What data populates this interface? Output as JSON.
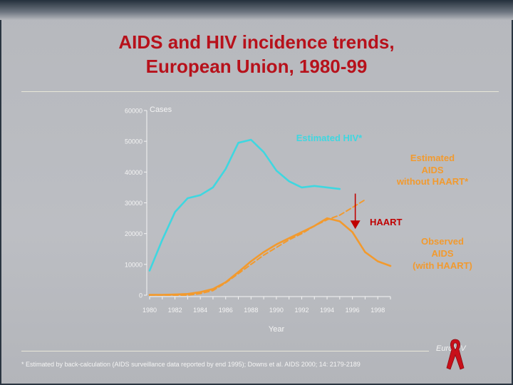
{
  "slide": {
    "title_line1": "AIDS and HIV incidence trends,",
    "title_line2": "European Union, 1980-99",
    "footnote": "* Estimated by back-calculation (AIDS surveillance data reported by end 1995); Downs et al. AIDS 2000; 14: 2179-2189",
    "brand": "EuroHIV",
    "ribbon_icon": "red-ribbon-icon"
  },
  "colors": {
    "title": "#b7111b",
    "hiv_series": "#3fd7e0",
    "aids_series": "#f29a2e",
    "annotation_red": "#c00000",
    "axis": "#f4f4f4"
  },
  "chart_data": {
    "type": "line",
    "ylabel": "Cases",
    "xlabel": "Year",
    "xlim": [
      1980,
      1999
    ],
    "ylim": [
      0,
      60000
    ],
    "yticks": [
      0,
      10000,
      20000,
      30000,
      40000,
      50000,
      60000
    ],
    "xticks": [
      1980,
      1982,
      1984,
      1986,
      1988,
      1990,
      1992,
      1994,
      1996,
      1998
    ],
    "series": [
      {
        "name": "Estimated HIV*",
        "style": "solid",
        "color": "#3fd7e0",
        "x": [
          1980,
          1981,
          1982,
          1983,
          1984,
          1985,
          1986,
          1987,
          1988,
          1989,
          1990,
          1991,
          1992,
          1993,
          1994,
          1995
        ],
        "y": [
          8000,
          18000,
          27000,
          31500,
          32500,
          35000,
          41000,
          49500,
          50500,
          46500,
          40500,
          37000,
          35000,
          35500,
          35000,
          34500
        ]
      },
      {
        "name": "Estimated AIDS without HAART*",
        "style": "dashed",
        "color": "#f29a2e",
        "x": [
          1980,
          1981,
          1982,
          1983,
          1984,
          1985,
          1986,
          1987,
          1988,
          1989,
          1990,
          1991,
          1992,
          1993,
          1994,
          1995,
          1996,
          1997
        ],
        "y": [
          0,
          0,
          0,
          0,
          500,
          1500,
          4000,
          7000,
          10000,
          13000,
          15500,
          18000,
          20000,
          22500,
          24500,
          26000,
          28500,
          31000
        ]
      },
      {
        "name": "Observed AIDS (with HAART)",
        "style": "solid",
        "color": "#f29a2e",
        "x": [
          1980,
          1981,
          1982,
          1983,
          1984,
          1985,
          1986,
          1987,
          1988,
          1989,
          1990,
          1991,
          1992,
          1993,
          1994,
          1995,
          1996,
          1997,
          1998,
          1999
        ],
        "y": [
          100,
          100,
          200,
          400,
          1000,
          2000,
          4200,
          7500,
          11000,
          14000,
          16500,
          18500,
          20500,
          22500,
          25000,
          24000,
          20500,
          14000,
          11000,
          9500
        ]
      }
    ],
    "annotations": [
      {
        "text": "Estimated HIV*",
        "color": "#3fd7e0"
      },
      {
        "text_lines": [
          "Estimated",
          "AIDS",
          "without HAART*"
        ],
        "color": "#f29a2e"
      },
      {
        "text_lines": [
          "Observed",
          "AIDS",
          "(with HAART)"
        ],
        "color": "#f29a2e"
      },
      {
        "text": "HAART",
        "color": "#c00000",
        "arrow_at_x": 1996,
        "arrow_from_y": 33000,
        "arrow_to_y": 21500
      }
    ]
  }
}
